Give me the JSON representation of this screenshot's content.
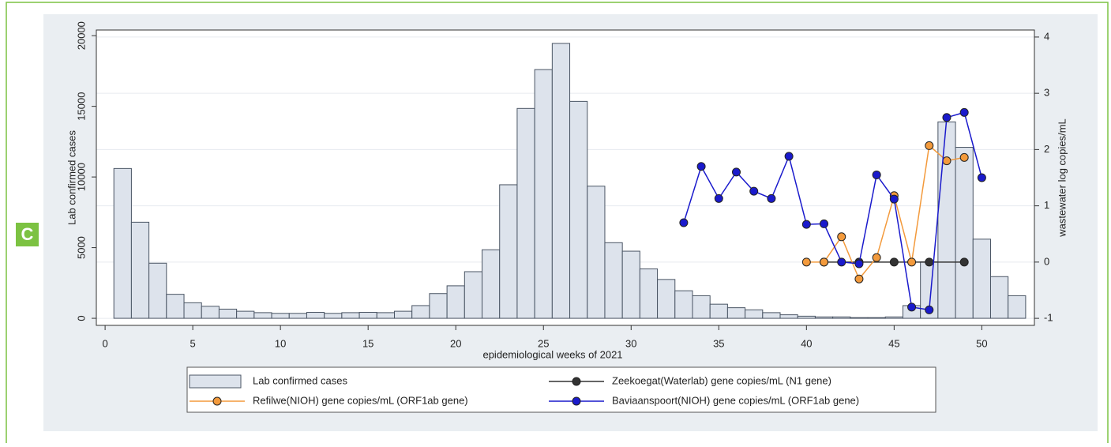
{
  "chart_data": {
    "type": "bar",
    "panel_label": "C",
    "x_label": "epidemiological weeks of 2021",
    "y_label": "Lab  confirmed cases",
    "y2_label": "wastewater log copies/mL",
    "xlim": [
      -0.5,
      53
    ],
    "xticks": [
      0,
      5,
      10,
      15,
      20,
      25,
      30,
      35,
      40,
      45,
      50
    ],
    "ylim": [
      -500,
      20400
    ],
    "yticks": [
      0,
      5000,
      10000,
      15000,
      20000
    ],
    "y2lim": [
      -1.125,
      4.125
    ],
    "y2ticks": [
      -1,
      0,
      1,
      2,
      3,
      4
    ],
    "grid": true,
    "series": [
      {
        "name": "Lab  confirmed cases",
        "type": "bar",
        "color": "#dde3ec",
        "axis": "y",
        "x": [
          1,
          2,
          3,
          4,
          5,
          6,
          7,
          8,
          9,
          10,
          11,
          12,
          13,
          14,
          15,
          16,
          17,
          18,
          19,
          20,
          21,
          22,
          23,
          24,
          25,
          26,
          27,
          28,
          29,
          30,
          31,
          32,
          33,
          34,
          35,
          36,
          37,
          38,
          39,
          40,
          41,
          42,
          43,
          44,
          45,
          46,
          47,
          48,
          49,
          50,
          51,
          52
        ],
        "values": [
          10600,
          6800,
          3900,
          1700,
          1100,
          850,
          650,
          500,
          400,
          350,
          350,
          420,
          350,
          400,
          420,
          400,
          500,
          900,
          1750,
          2300,
          3300,
          4850,
          9450,
          14850,
          17600,
          19450,
          15350,
          9350,
          5350,
          4750,
          3500,
          2750,
          1950,
          1600,
          1000,
          750,
          600,
          400,
          250,
          150,
          100,
          100,
          50,
          50,
          100,
          900,
          4000,
          13900,
          12100,
          5600,
          2950,
          1600
        ]
      },
      {
        "name": "Zeekoegat(Waterlab) gene copies/mL (N1 gene)",
        "type": "line",
        "color": "#333333",
        "axis": "y2",
        "x": [
          41,
          43,
          45,
          47,
          49
        ],
        "values": [
          0,
          0,
          0,
          0,
          0
        ]
      },
      {
        "name": "Refilwe(NIOH) gene copies/mL (ORF1ab gene)",
        "type": "line",
        "color": "#f39a3c",
        "axis": "y2",
        "x": [
          40,
          41,
          42,
          43,
          44,
          45,
          46,
          47,
          48,
          49
        ],
        "values": [
          0,
          0,
          0.45,
          -0.3,
          0.08,
          1.18,
          0,
          2.07,
          1.8,
          1.86
        ]
      },
      {
        "name": "Baviaanspoort(NIOH) gene copies/mL (ORF1ab gene)",
        "type": "line",
        "color": "#1a1acc",
        "axis": "y2",
        "x": [
          33,
          34,
          35,
          36,
          37,
          38,
          39,
          40,
          41,
          42,
          43,
          44,
          45,
          46,
          47,
          48,
          49,
          50
        ],
        "values": [
          0.7,
          1.7,
          1.13,
          1.6,
          1.26,
          1.13,
          1.88,
          0.67,
          0.68,
          0,
          -0.03,
          1.55,
          1.12,
          -0.8,
          -0.85,
          2.57,
          2.66,
          1.5
        ]
      }
    ]
  }
}
